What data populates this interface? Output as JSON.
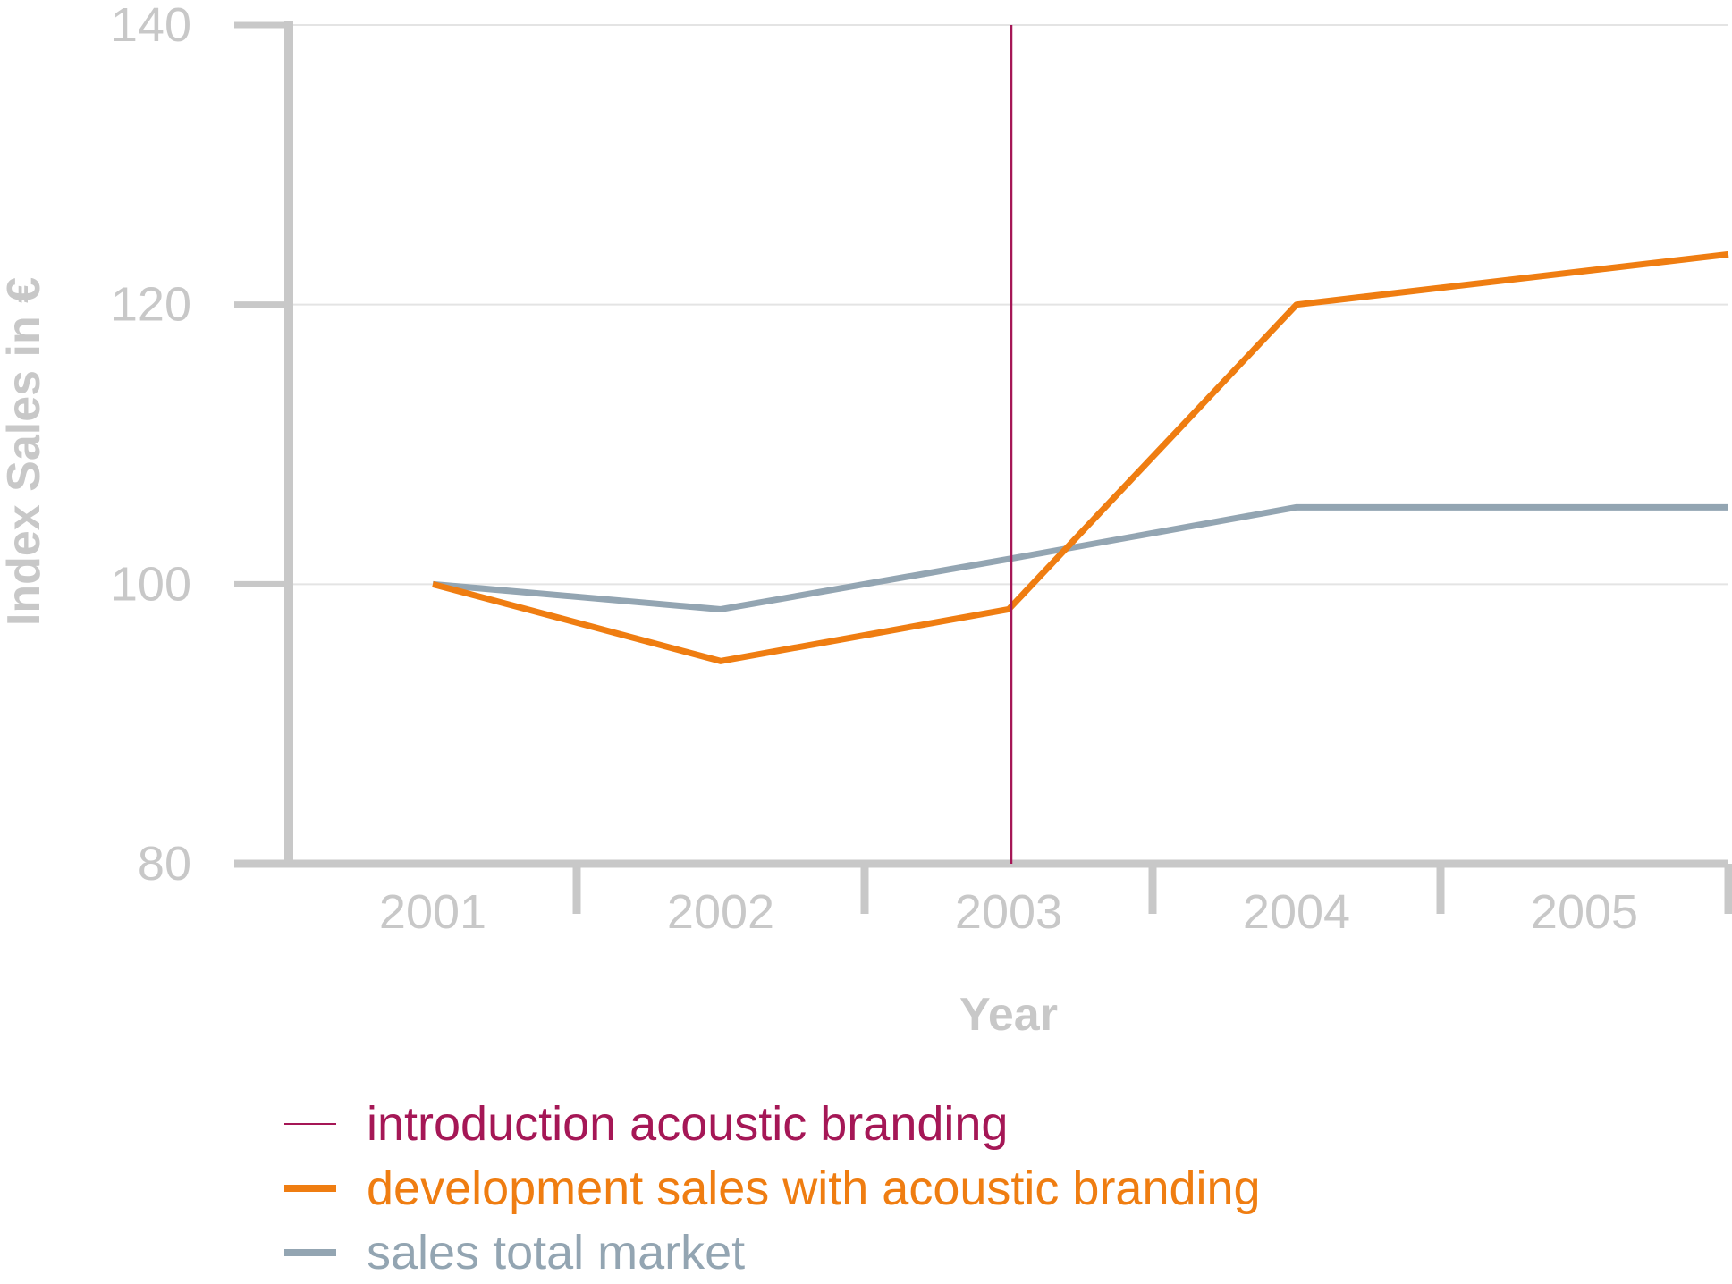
{
  "chart_data": {
    "type": "line",
    "categories": [
      "2001",
      "2002",
      "2003",
      "2004",
      "2005"
    ],
    "yticks": [
      "140",
      "120",
      "100",
      "80"
    ],
    "ylim": [
      80,
      140
    ],
    "ylabel": "Index Sales in €",
    "xlabel": "Year",
    "grid": true,
    "legend_position": "bottom",
    "series": [
      {
        "name": "development sales with acoustic branding",
        "color": "#ef7d11",
        "points": [
          [
            2001,
            100
          ],
          [
            2002,
            94.5
          ],
          [
            2003,
            98.2
          ],
          [
            2004,
            120
          ],
          [
            2005,
            123.6
          ]
        ]
      },
      {
        "name": "sales total market",
        "color": "#93a5b2",
        "points": [
          [
            2001,
            100
          ],
          [
            2002,
            98.2
          ],
          [
            2003,
            101.8
          ],
          [
            2004,
            105.5
          ],
          [
            2005,
            105.5
          ]
        ]
      }
    ],
    "markers": [
      {
        "name": "introduction acoustic branding",
        "x": 2003,
        "color": "#a51756"
      }
    ],
    "colors": {
      "axis": "#c8c8c8",
      "grid": "#e4e4e4"
    }
  }
}
